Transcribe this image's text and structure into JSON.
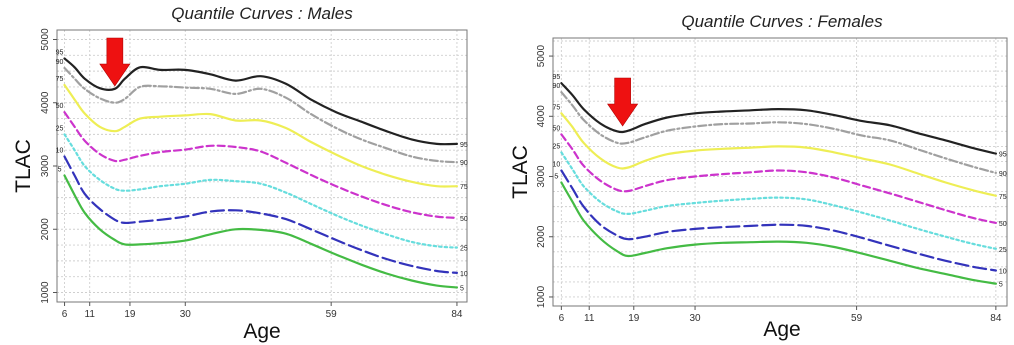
{
  "chart_data": [
    {
      "type": "line",
      "title": "Quantile Curves :  Males",
      "xlabel": "Age",
      "ylabel": "TLAC",
      "xticks": [
        6,
        11,
        19,
        30,
        59,
        84
      ],
      "yticks": [
        1000,
        2000,
        3000,
        4000,
        5000
      ],
      "xlim": [
        4.5,
        86
      ],
      "ylim": [
        850,
        5150
      ],
      "grid": true,
      "annotations": [
        {
          "type": "arrow",
          "x": 16,
          "pointing": "down",
          "color": "#ee1111"
        }
      ],
      "series": [
        {
          "name": "95",
          "color": "#222222",
          "style": "solid",
          "x": [
            6,
            8,
            10,
            13,
            16,
            18,
            21,
            25,
            30,
            35,
            40,
            45,
            50,
            55,
            60,
            65,
            70,
            75,
            80,
            84
          ],
          "values": [
            4700,
            4560,
            4380,
            4230,
            4220,
            4380,
            4560,
            4520,
            4520,
            4450,
            4350,
            4420,
            4300,
            4050,
            3850,
            3700,
            3550,
            3420,
            3350,
            3350
          ]
        },
        {
          "name": "90",
          "color": "#a0a0a0",
          "style": "dashdot",
          "x": [
            6,
            8,
            10,
            13,
            16,
            18,
            21,
            25,
            30,
            35,
            40,
            45,
            50,
            55,
            60,
            65,
            70,
            75,
            80,
            84
          ],
          "values": [
            4550,
            4380,
            4220,
            4070,
            4000,
            4060,
            4250,
            4260,
            4240,
            4220,
            4140,
            4220,
            4080,
            3820,
            3600,
            3420,
            3280,
            3150,
            3080,
            3060
          ]
        },
        {
          "name": "75",
          "color": "#eeee55",
          "style": "solid",
          "x": [
            6,
            8,
            10,
            13,
            16,
            18,
            21,
            25,
            30,
            35,
            40,
            45,
            50,
            55,
            60,
            65,
            70,
            75,
            80,
            84
          ],
          "values": [
            4280,
            4050,
            3830,
            3620,
            3550,
            3620,
            3750,
            3780,
            3800,
            3820,
            3720,
            3720,
            3600,
            3380,
            3180,
            3000,
            2860,
            2750,
            2680,
            2680
          ]
        },
        {
          "name": "50",
          "color": "#cc33cc",
          "style": "dashed",
          "x": [
            6,
            8,
            10,
            13,
            16,
            18,
            21,
            25,
            30,
            35,
            40,
            45,
            50,
            55,
            60,
            65,
            70,
            75,
            80,
            84
          ],
          "values": [
            3850,
            3620,
            3400,
            3190,
            3080,
            3100,
            3160,
            3220,
            3260,
            3320,
            3300,
            3230,
            3050,
            2860,
            2680,
            2520,
            2380,
            2270,
            2200,
            2180
          ]
        },
        {
          "name": "25",
          "color": "#66dddd",
          "style": "dotted",
          "x": [
            6,
            8,
            10,
            13,
            16,
            18,
            21,
            25,
            30,
            35,
            40,
            45,
            50,
            55,
            60,
            65,
            70,
            75,
            80,
            84
          ],
          "values": [
            3500,
            3250,
            3000,
            2780,
            2640,
            2610,
            2630,
            2680,
            2720,
            2780,
            2760,
            2720,
            2580,
            2400,
            2220,
            2060,
            1920,
            1800,
            1730,
            1710
          ]
        },
        {
          "name": "10",
          "color": "#3333bb",
          "style": "longdash",
          "x": [
            6,
            8,
            10,
            13,
            16,
            18,
            21,
            25,
            30,
            35,
            40,
            45,
            50,
            55,
            60,
            65,
            70,
            75,
            80,
            84
          ],
          "values": [
            3150,
            2850,
            2560,
            2320,
            2150,
            2100,
            2120,
            2150,
            2200,
            2280,
            2300,
            2250,
            2160,
            2000,
            1830,
            1670,
            1530,
            1420,
            1340,
            1310
          ]
        },
        {
          "name": "5",
          "color": "#44bb44",
          "style": "solid",
          "x": [
            6,
            8,
            10,
            13,
            16,
            18,
            21,
            25,
            30,
            35,
            40,
            45,
            50,
            55,
            60,
            65,
            70,
            75,
            80,
            84
          ],
          "values": [
            2850,
            2540,
            2260,
            2000,
            1830,
            1760,
            1760,
            1780,
            1820,
            1920,
            2000,
            1990,
            1930,
            1770,
            1600,
            1440,
            1300,
            1190,
            1110,
            1080
          ]
        }
      ]
    },
    {
      "type": "line",
      "title": "Quantile Curves :  Females",
      "xlabel": "Age",
      "ylabel": "TLAC",
      "xticks": [
        6,
        11,
        19,
        30,
        59,
        84
      ],
      "yticks": [
        1000,
        2000,
        3000,
        4000,
        5000
      ],
      "xlim": [
        4.5,
        86
      ],
      "ylim": [
        850,
        5300
      ],
      "grid": true,
      "annotations": [
        {
          "type": "arrow",
          "x": 17,
          "pointing": "down",
          "color": "#ee1111"
        }
      ],
      "series": [
        {
          "name": "95",
          "color": "#222222",
          "style": "solid",
          "x": [
            6,
            8,
            10,
            13,
            16,
            18,
            21,
            25,
            30,
            35,
            40,
            45,
            50,
            55,
            60,
            65,
            70,
            75,
            80,
            84
          ],
          "values": [
            4550,
            4350,
            4120,
            3880,
            3750,
            3760,
            3870,
            3980,
            4050,
            4080,
            4100,
            4120,
            4100,
            4020,
            3920,
            3850,
            3720,
            3600,
            3470,
            3380
          ]
        },
        {
          "name": "90",
          "color": "#a0a0a0",
          "style": "dashdot",
          "x": [
            6,
            8,
            10,
            13,
            16,
            18,
            21,
            25,
            30,
            35,
            40,
            45,
            50,
            55,
            60,
            65,
            70,
            75,
            80,
            84
          ],
          "values": [
            4400,
            4180,
            3940,
            3700,
            3560,
            3560,
            3650,
            3760,
            3830,
            3870,
            3880,
            3900,
            3870,
            3790,
            3680,
            3600,
            3450,
            3300,
            3160,
            3060
          ]
        },
        {
          "name": "75",
          "color": "#eeee55",
          "style": "solid",
          "x": [
            6,
            8,
            10,
            13,
            16,
            18,
            21,
            25,
            30,
            35,
            40,
            45,
            50,
            55,
            60,
            65,
            70,
            75,
            80,
            84
          ],
          "values": [
            4050,
            3820,
            3560,
            3300,
            3150,
            3150,
            3260,
            3370,
            3430,
            3460,
            3480,
            3500,
            3480,
            3400,
            3300,
            3200,
            3050,
            2900,
            2770,
            2680
          ]
        },
        {
          "name": "50",
          "color": "#cc33cc",
          "style": "dashed",
          "x": [
            6,
            8,
            10,
            13,
            16,
            18,
            21,
            25,
            30,
            35,
            40,
            45,
            50,
            55,
            60,
            65,
            70,
            75,
            80,
            84
          ],
          "values": [
            3700,
            3450,
            3180,
            2930,
            2780,
            2760,
            2840,
            2940,
            3000,
            3040,
            3070,
            3100,
            3070,
            2980,
            2850,
            2720,
            2580,
            2440,
            2310,
            2230
          ]
        },
        {
          "name": "25",
          "color": "#66dddd",
          "style": "dotted",
          "x": [
            6,
            8,
            10,
            13,
            16,
            18,
            21,
            25,
            30,
            35,
            40,
            45,
            50,
            55,
            60,
            65,
            70,
            75,
            80,
            84
          ],
          "values": [
            3400,
            3120,
            2840,
            2580,
            2420,
            2380,
            2430,
            2510,
            2560,
            2600,
            2630,
            2650,
            2620,
            2520,
            2400,
            2270,
            2130,
            2000,
            1880,
            1800
          ]
        },
        {
          "name": "10",
          "color": "#3333bb",
          "style": "longdash",
          "x": [
            6,
            8,
            10,
            13,
            16,
            18,
            21,
            25,
            30,
            35,
            40,
            45,
            50,
            55,
            60,
            65,
            70,
            75,
            80,
            84
          ],
          "values": [
            3100,
            2800,
            2500,
            2200,
            2020,
            1960,
            2000,
            2080,
            2130,
            2160,
            2180,
            2200,
            2180,
            2100,
            1980,
            1850,
            1720,
            1600,
            1500,
            1440
          ]
        },
        {
          "name": "5",
          "color": "#44bb44",
          "style": "solid",
          "x": [
            6,
            8,
            10,
            13,
            16,
            18,
            21,
            25,
            30,
            35,
            40,
            45,
            50,
            55,
            60,
            65,
            70,
            75,
            80,
            84
          ],
          "values": [
            2900,
            2580,
            2270,
            1970,
            1760,
            1680,
            1730,
            1810,
            1870,
            1900,
            1910,
            1920,
            1900,
            1830,
            1720,
            1600,
            1480,
            1380,
            1280,
            1220
          ]
        }
      ]
    }
  ]
}
